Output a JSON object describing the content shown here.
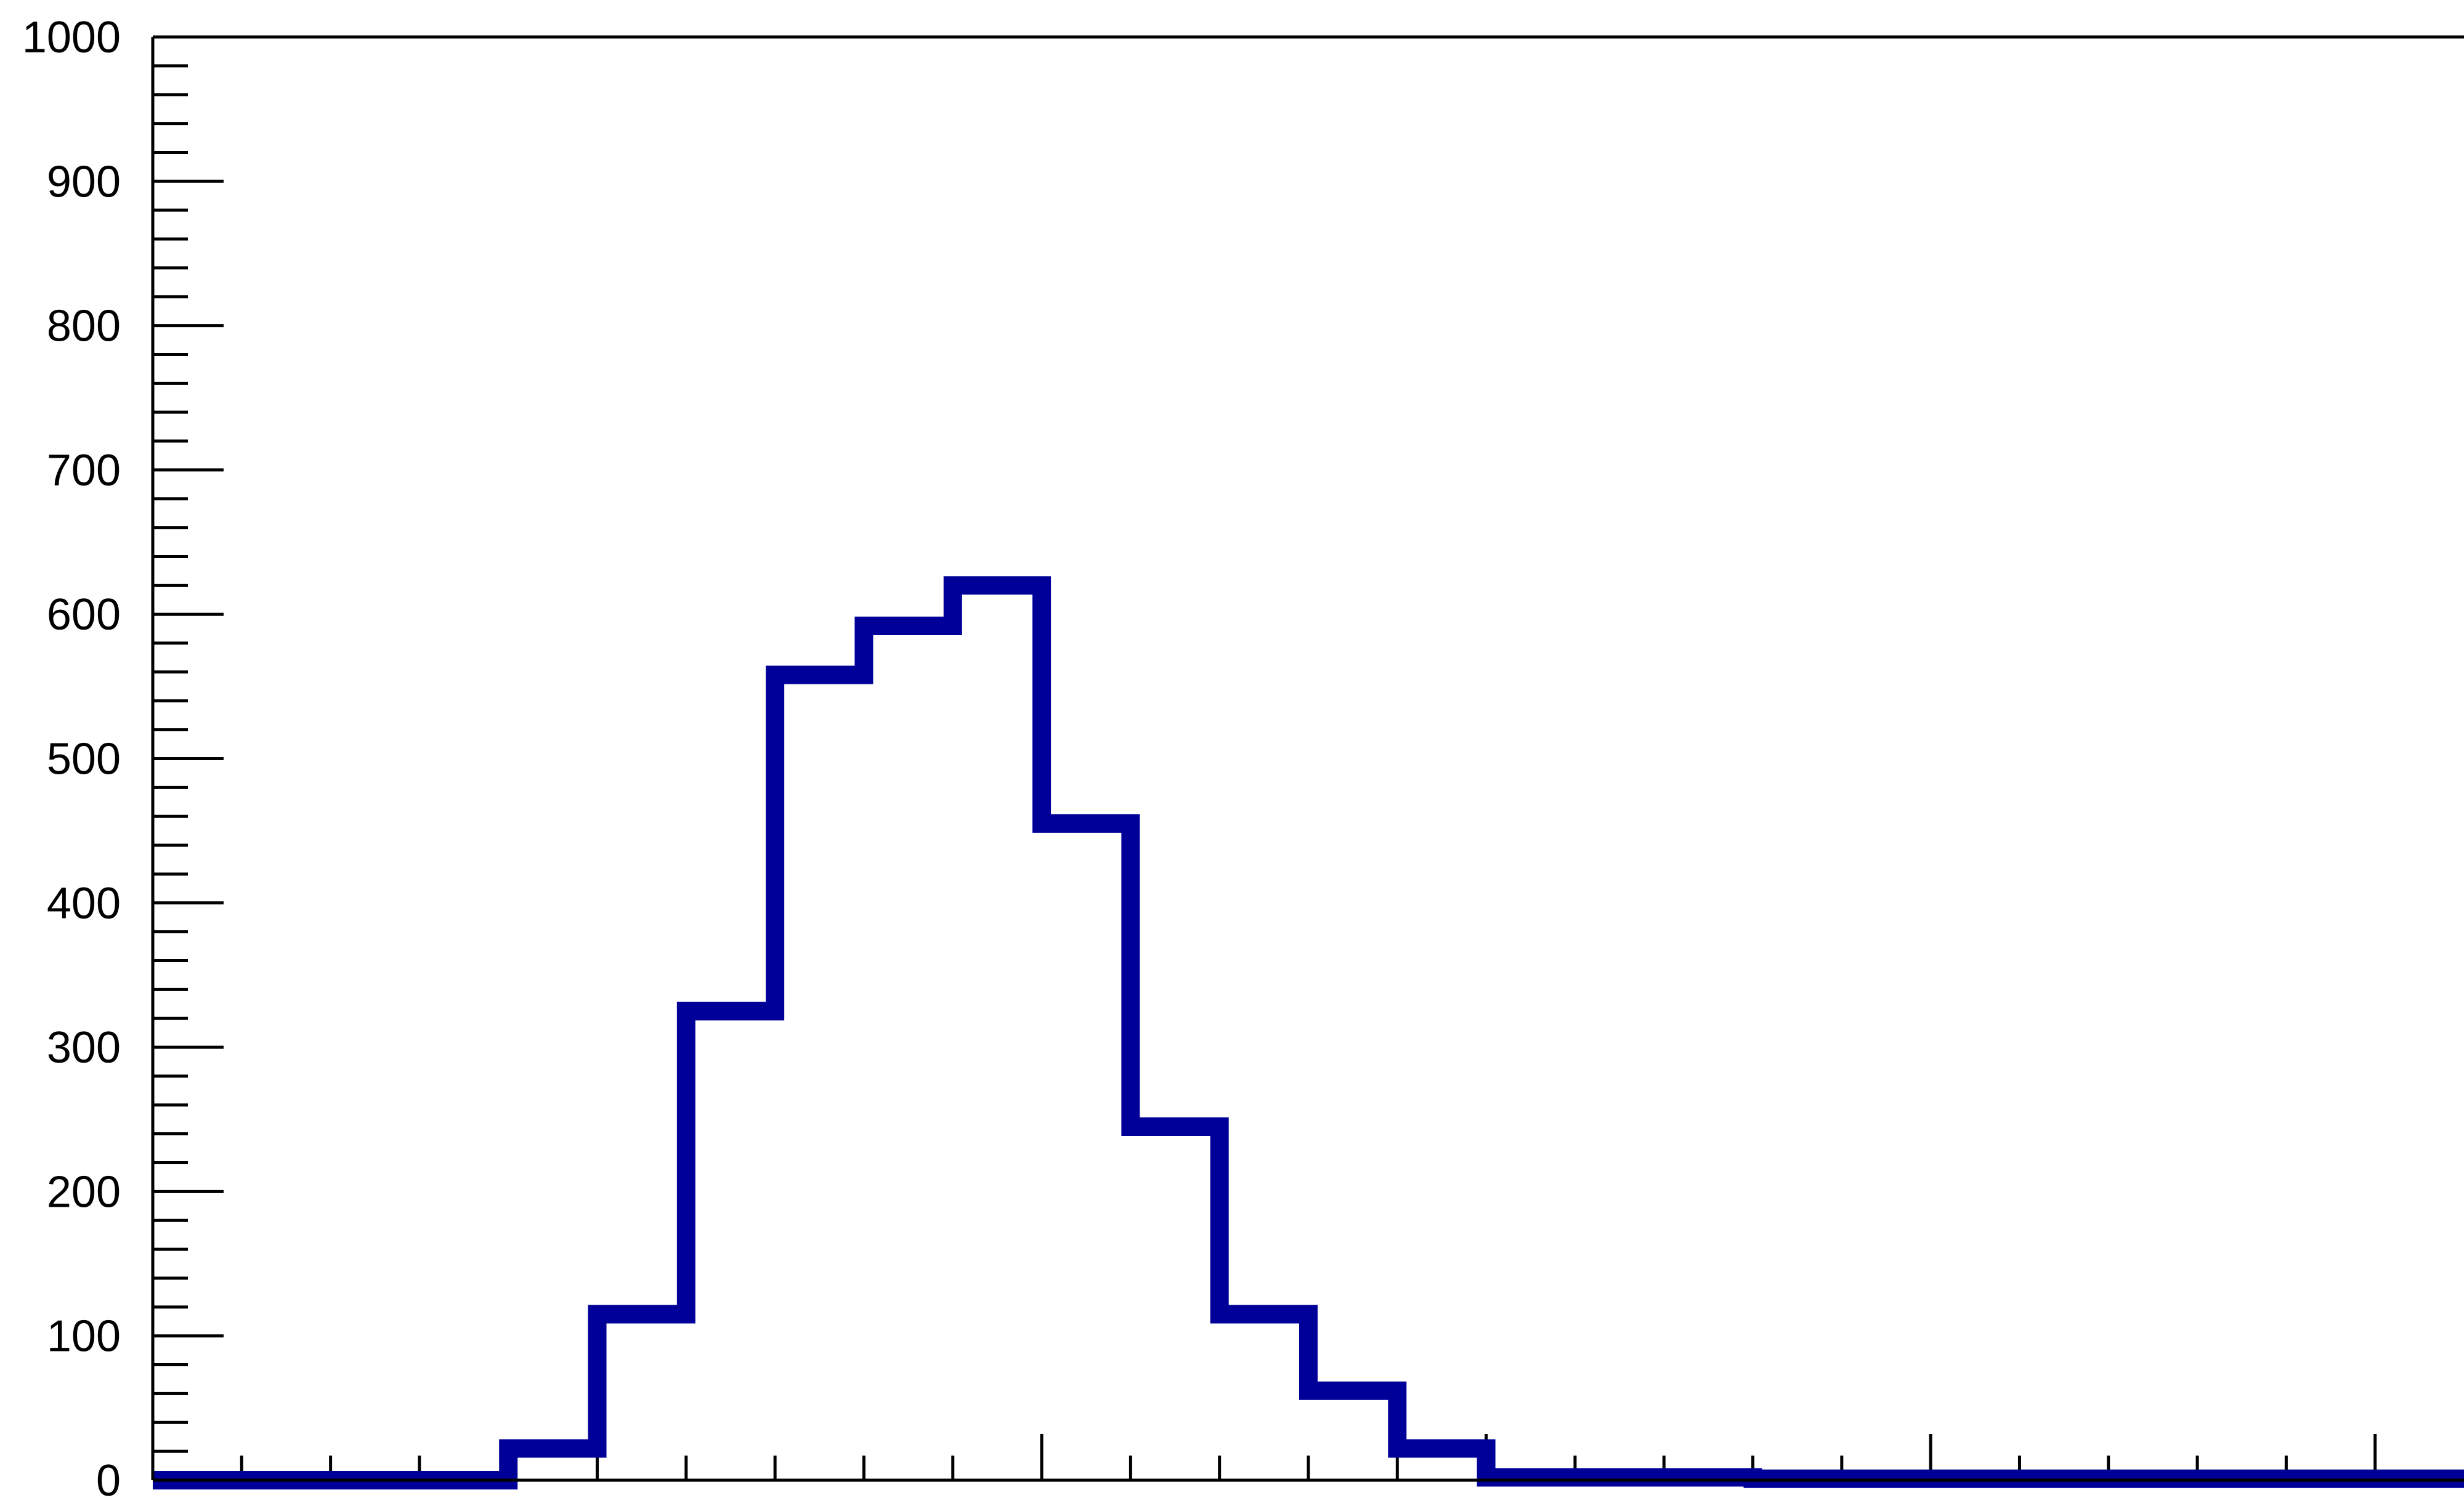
{
  "chart_data": {
    "type": "histogram",
    "title": "",
    "xlabel": "",
    "ylabel": "",
    "ylim": [
      0,
      1000
    ],
    "y_ticks": [
      0,
      100,
      200,
      300,
      400,
      500,
      600,
      700,
      800,
      900,
      1000
    ],
    "y_tick_labels": [
      "0",
      "100",
      "200",
      "300",
      "400",
      "500",
      "600",
      "700",
      "800",
      "900",
      "1000"
    ],
    "xlim": [
      0,
      26
    ],
    "bins": 26,
    "values": [
      0,
      0,
      0,
      0,
      22,
      115,
      325,
      558,
      592,
      620,
      455,
      245,
      115,
      62,
      22,
      2,
      2,
      2,
      1,
      1,
      1,
      1,
      1,
      1,
      1,
      1
    ],
    "line_color": "#000099",
    "axis_color": "#000000",
    "background": "#ffffff"
  }
}
